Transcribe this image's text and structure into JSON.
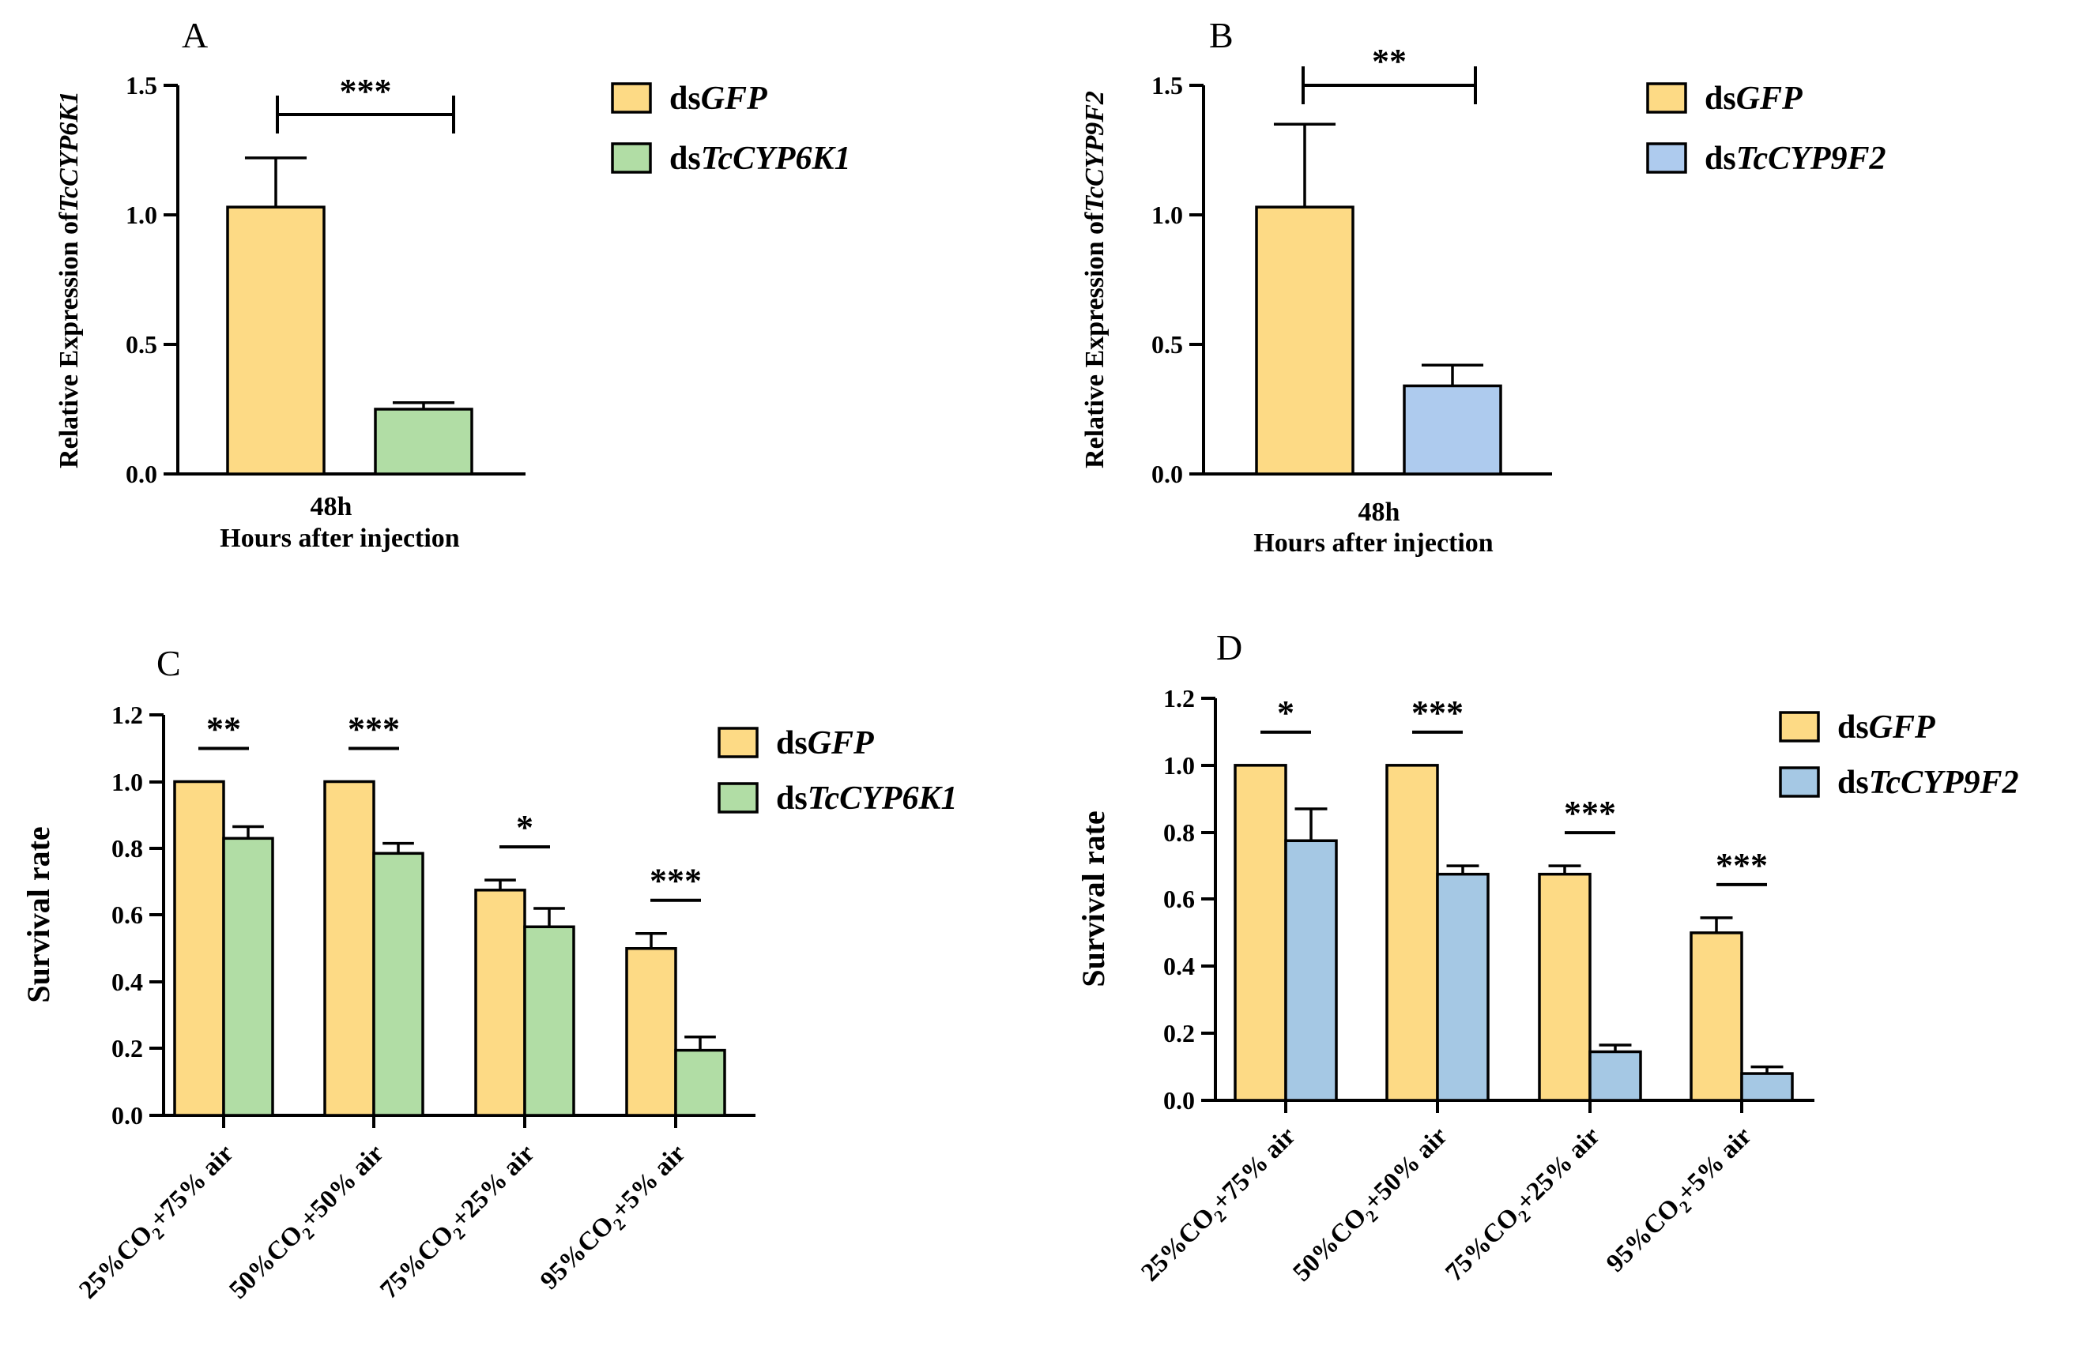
{
  "colors": {
    "gfp": "#FDDA85",
    "k1": "#B1DDA5",
    "f2_top": "#AECBEE",
    "f2_bottom": "#A5C8E4",
    "axis": "#000000"
  },
  "chart_data": [
    {
      "panel": "A",
      "type": "bar",
      "ylabel_prefix": "Relative Expression of",
      "ylabel_gene": "TcCYP6K1",
      "xlabel": "Hours after injection",
      "categories": [
        "48h"
      ],
      "ylim": [
        0,
        1.5
      ],
      "yticks": [
        "0.0",
        "0.5",
        "1.0",
        "1.5"
      ],
      "series": [
        {
          "name": "dsGFP",
          "prefix": "ds",
          "gene": "GFP",
          "color_key": "gfp",
          "values": [
            1.03
          ],
          "errors": [
            0.19
          ]
        },
        {
          "name": "dsTcCYP6K1",
          "prefix": "ds",
          "gene": "TcCYP6K1",
          "color_key": "k1",
          "values": [
            0.25
          ],
          "errors": [
            0.025
          ]
        }
      ],
      "significance": [
        "***"
      ]
    },
    {
      "panel": "B",
      "type": "bar",
      "ylabel_prefix": "Relative Expression of",
      "ylabel_gene": "TcCYP9F2",
      "xlabel": "Hours after injection",
      "categories": [
        "48h"
      ],
      "ylim": [
        0,
        1.5
      ],
      "yticks": [
        "0.0",
        "0.5",
        "1.0",
        "1.5"
      ],
      "series": [
        {
          "name": "dsGFP",
          "prefix": "ds",
          "gene": "GFP",
          "color_key": "gfp",
          "values": [
            1.03
          ],
          "errors": [
            0.32
          ]
        },
        {
          "name": "dsTcCYP9F2",
          "prefix": "ds",
          "gene": "TcCYP9F2",
          "color_key": "f2_top",
          "values": [
            0.34
          ],
          "errors": [
            0.08
          ]
        }
      ],
      "significance": [
        "**"
      ]
    },
    {
      "panel": "C",
      "type": "bar",
      "ylabel": "Survival rate",
      "categories": [
        {
          "a": "25%CO",
          "sub": "2",
          "b": "+75% air"
        },
        {
          "a": "50%CO",
          "sub": "2",
          "b": "+50% air"
        },
        {
          "a": "75%CO",
          "sub": "2",
          "b": "+25% air"
        },
        {
          "a": "95%CO",
          "sub": "2",
          "b": "+5% air"
        }
      ],
      "ylim": [
        0,
        1.2
      ],
      "yticks": [
        "0.0",
        "0.2",
        "0.4",
        "0.6",
        "0.8",
        "1.0",
        "1.2"
      ],
      "series": [
        {
          "name": "dsGFP",
          "prefix": "ds",
          "gene": "GFP",
          "color_key": "gfp",
          "values": [
            1.0,
            1.0,
            0.675,
            0.5
          ],
          "errors": [
            0,
            0,
            0.03,
            0.045
          ]
        },
        {
          "name": "dsTcCYP6K1",
          "prefix": "ds",
          "gene": "TcCYP6K1",
          "color_key": "k1",
          "values": [
            0.83,
            0.785,
            0.565,
            0.195
          ],
          "errors": [
            0.035,
            0.03,
            0.055,
            0.04
          ]
        }
      ],
      "significance": [
        "**",
        "***",
        "*",
        "***"
      ]
    },
    {
      "panel": "D",
      "type": "bar",
      "ylabel": "Survival rate",
      "categories": [
        {
          "a": "25%CO",
          "sub": "2",
          "b": "+75% air"
        },
        {
          "a": "50%CO",
          "sub": "2",
          "b": "+50% air"
        },
        {
          "a": "75%CO",
          "sub": "2",
          "b": "+25% air"
        },
        {
          "a": "95%CO",
          "sub": "2",
          "b": "+5% air"
        }
      ],
      "ylim": [
        0,
        1.2
      ],
      "yticks": [
        "0.0",
        "0.2",
        "0.4",
        "0.6",
        "0.8",
        "1.0",
        "1.2"
      ],
      "series": [
        {
          "name": "dsGFP",
          "prefix": "ds",
          "gene": "GFP",
          "color_key": "gfp",
          "values": [
            1.0,
            1.0,
            0.675,
            0.5
          ],
          "errors": [
            0,
            0,
            0.025,
            0.045
          ]
        },
        {
          "name": "dsTcCYP9F2",
          "prefix": "ds",
          "gene": "TcCYP9F2",
          "color_key": "f2_bottom",
          "values": [
            0.775,
            0.675,
            0.145,
            0.08
          ],
          "errors": [
            0.095,
            0.025,
            0.02,
            0.02
          ]
        }
      ],
      "significance": [
        "*",
        "***",
        "***",
        "***"
      ]
    }
  ]
}
